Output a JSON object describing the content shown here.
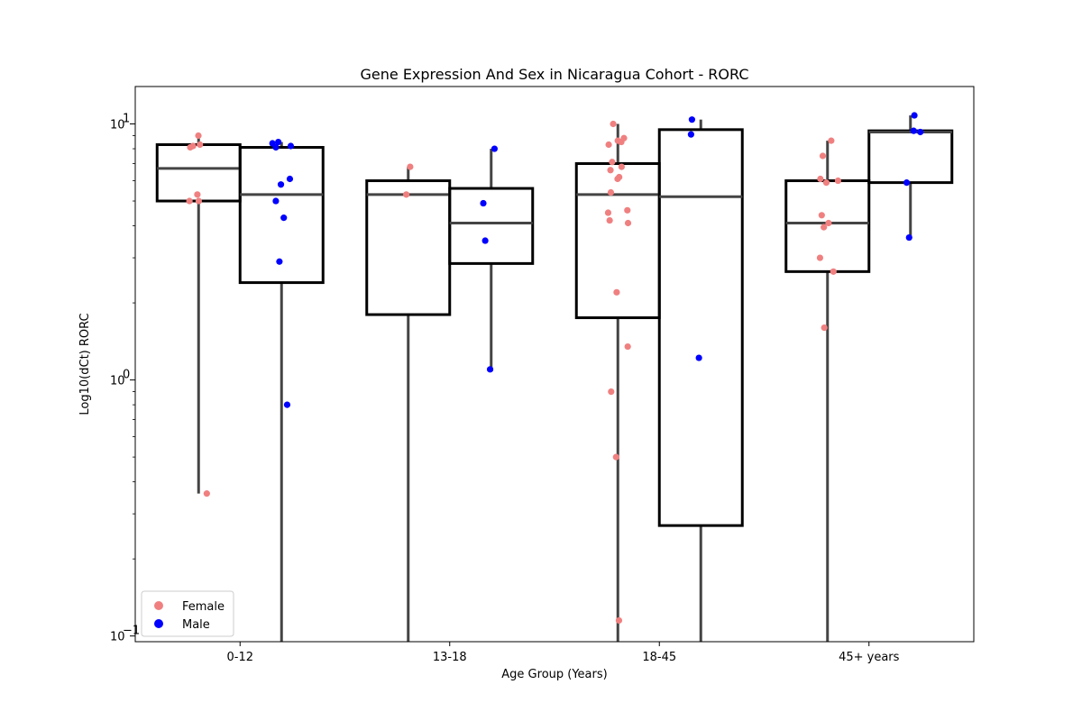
{
  "chart_data": {
    "type": "box",
    "title": "Gene Expression And Sex in Nicaragua Cohort - RORC",
    "xlabel": "Age Group (Years)",
    "ylabel": "Log10(dCt) RORC",
    "y_scale": "log",
    "ylim": [
      0.095,
      14
    ],
    "y_ticks": [
      0.1,
      1,
      10
    ],
    "y_tick_labels": [
      "10",
      "10",
      "10"
    ],
    "y_tick_exponents": [
      "−1",
      "0",
      "1"
    ],
    "grid": false,
    "legend_position": "lower-left",
    "categories": [
      "0-12",
      "13-18",
      "18-45",
      "45+ years"
    ],
    "series": [
      {
        "name": "Female",
        "color": "#f08080",
        "boxes": [
          {
            "q1": 5.0,
            "median": 6.7,
            "q3": 8.3,
            "whisker_low": 0.36,
            "whisker_high": 9.0
          },
          {
            "q1": 1.8,
            "median": 5.3,
            "q3": 6.0,
            "whisker_low": 0.09,
            "whisker_high": 6.8
          },
          {
            "q1": 1.75,
            "median": 5.3,
            "q3": 7.0,
            "whisker_low": 0.09,
            "whisker_high": 10.0
          },
          {
            "q1": 2.65,
            "median": 4.1,
            "q3": 6.0,
            "whisker_low": 0.09,
            "whisker_high": 8.6
          }
        ],
        "points": [
          [
            9.0,
            8.3,
            8.1,
            8.2,
            5.3,
            5.0,
            5.0,
            0.36
          ],
          [
            6.8,
            5.3
          ],
          [
            10.0,
            8.8,
            8.5,
            8.3,
            8.6,
            7.1,
            6.8,
            6.6,
            6.2,
            6.1,
            5.4,
            4.5,
            4.6,
            4.1,
            4.2,
            2.2,
            1.35,
            0.9,
            0.5,
            0.115
          ],
          [
            8.6,
            7.5,
            6.1,
            6.0,
            5.9,
            4.4,
            4.1,
            3.95,
            3.0,
            2.65,
            1.6
          ]
        ]
      },
      {
        "name": "Male",
        "color": "#0000ff",
        "boxes": [
          {
            "q1": 2.4,
            "median": 5.3,
            "q3": 8.1,
            "whisker_low": 0.09,
            "whisker_high": 8.5
          },
          {
            "q1": 2.85,
            "median": 4.1,
            "q3": 5.6,
            "whisker_low": 1.1,
            "whisker_high": 8.0
          },
          {
            "q1": 0.27,
            "median": 5.2,
            "q3": 9.5,
            "whisker_low": 0.09,
            "whisker_high": 10.4
          },
          {
            "q1": 5.9,
            "median": 9.3,
            "q3": 9.4,
            "whisker_low": 3.6,
            "whisker_high": 10.8
          }
        ],
        "points": [
          [
            8.5,
            8.4,
            8.2,
            8.1,
            6.1,
            5.8,
            5.0,
            4.3,
            2.9,
            0.8
          ],
          [
            8.0,
            4.9,
            3.5,
            1.1
          ],
          [
            10.4,
            9.1,
            1.22
          ],
          [
            10.8,
            9.4,
            9.3,
            5.9,
            3.6
          ]
        ]
      }
    ]
  }
}
